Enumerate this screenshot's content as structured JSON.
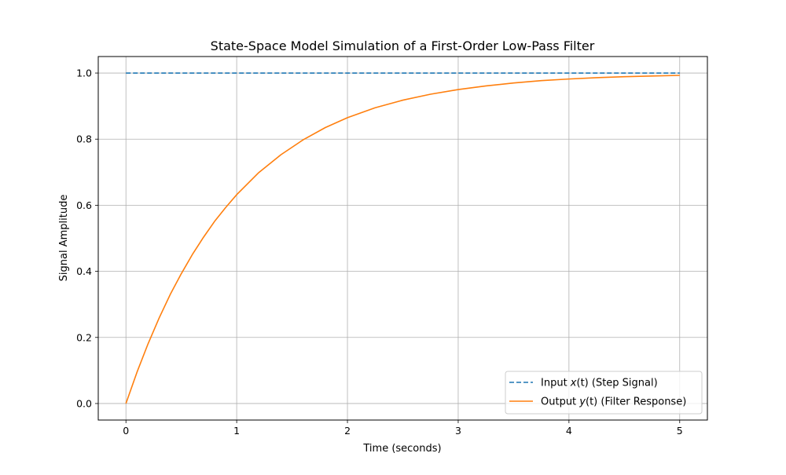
{
  "chart_data": {
    "type": "line",
    "title": "State-Space Model Simulation of a First-Order Low-Pass Filter",
    "xlabel": "Time (seconds)",
    "ylabel": "Signal Amplitude",
    "xlim": [
      -0.25,
      5.25
    ],
    "ylim": [
      -0.05,
      1.05
    ],
    "xticks": [
      0,
      1,
      2,
      3,
      4,
      5
    ],
    "yticks": [
      0.0,
      0.2,
      0.4,
      0.6,
      0.8,
      1.0
    ],
    "xtick_labels": [
      "0",
      "1",
      "2",
      "3",
      "4",
      "5"
    ],
    "ytick_labels": [
      "0.0",
      "0.2",
      "0.4",
      "0.6",
      "0.8",
      "1.0"
    ],
    "grid": true,
    "legend_position": "bottom-right",
    "series": [
      {
        "name": "Input x(t) (Step Signal)",
        "label_prefix": "Input ",
        "label_var": "x",
        "label_arg": "(t)",
        "label_suffix": " (Step Signal)",
        "color": "#1f77b4",
        "style": "dashed",
        "x": [
          0,
          5
        ],
        "y": [
          1.0,
          1.0
        ]
      },
      {
        "name": "Output y(t) (Filter Response)",
        "label_prefix": "Output ",
        "label_var": "y",
        "label_arg": "(t)",
        "label_suffix": " (Filter Response)",
        "color": "#ff7f0e",
        "style": "solid",
        "x": [
          0,
          0.1,
          0.2,
          0.3,
          0.4,
          0.5,
          0.6,
          0.7,
          0.8,
          0.9,
          1.0,
          1.2,
          1.4,
          1.6,
          1.8,
          2.0,
          2.25,
          2.5,
          2.75,
          3.0,
          3.25,
          3.5,
          3.75,
          4.0,
          4.25,
          4.5,
          4.75,
          5.0
        ],
        "y": [
          0.0,
          0.095,
          0.181,
          0.259,
          0.33,
          0.393,
          0.451,
          0.503,
          0.551,
          0.593,
          0.632,
          0.699,
          0.753,
          0.798,
          0.835,
          0.865,
          0.895,
          0.918,
          0.936,
          0.95,
          0.961,
          0.97,
          0.977,
          0.982,
          0.986,
          0.989,
          0.991,
          0.993
        ]
      }
    ]
  }
}
